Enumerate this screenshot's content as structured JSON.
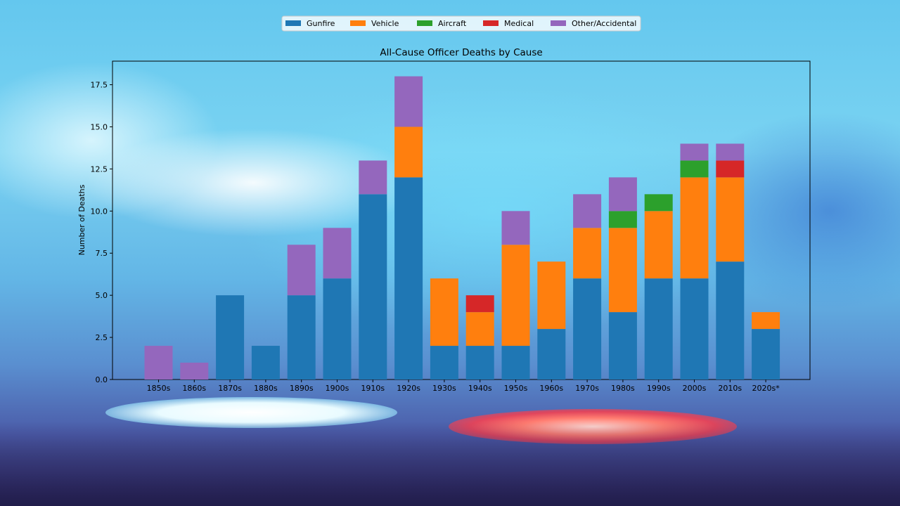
{
  "chart_data": {
    "type": "bar",
    "stacked": true,
    "title": "All-Cause Officer Deaths by Cause",
    "xlabel": "",
    "ylabel": "Number of Deaths",
    "ylim": [
      0,
      18.9
    ],
    "yticks": [
      "0.0",
      "2.5",
      "5.0",
      "7.5",
      "10.0",
      "12.5",
      "15.0",
      "17.5"
    ],
    "grid": false,
    "legend_position": "top-center",
    "categories": [
      "1850s",
      "1860s",
      "1870s",
      "1880s",
      "1890s",
      "1900s",
      "1910s",
      "1920s",
      "1930s",
      "1940s",
      "1950s",
      "1960s",
      "1970s",
      "1980s",
      "1990s",
      "2000s",
      "2010s",
      "2020s*"
    ],
    "series": [
      {
        "name": "Gunfire",
        "color": "#1f77b4",
        "values": [
          0,
          0,
          5,
          2,
          5,
          6,
          11,
          12,
          2,
          2,
          2,
          3,
          6,
          4,
          6,
          6,
          7,
          3
        ]
      },
      {
        "name": "Vehicle",
        "color": "#ff7f0e",
        "values": [
          0,
          0,
          0,
          0,
          0,
          0,
          0,
          3,
          4,
          2,
          6,
          4,
          3,
          5,
          4,
          6,
          5,
          1
        ]
      },
      {
        "name": "Aircraft",
        "color": "#2ca02c",
        "values": [
          0,
          0,
          0,
          0,
          0,
          0,
          0,
          0,
          0,
          0,
          0,
          0,
          0,
          1,
          1,
          1,
          0,
          0
        ]
      },
      {
        "name": "Medical",
        "color": "#d62728",
        "values": [
          0,
          0,
          0,
          0,
          0,
          0,
          0,
          0,
          0,
          1,
          0,
          0,
          0,
          0,
          0,
          0,
          1,
          0
        ]
      },
      {
        "name": "Other/Accidental",
        "color": "#9467bd",
        "values": [
          2,
          1,
          0,
          0,
          3,
          3,
          2,
          3,
          0,
          0,
          2,
          0,
          2,
          2,
          0,
          1,
          1,
          0
        ]
      }
    ]
  }
}
